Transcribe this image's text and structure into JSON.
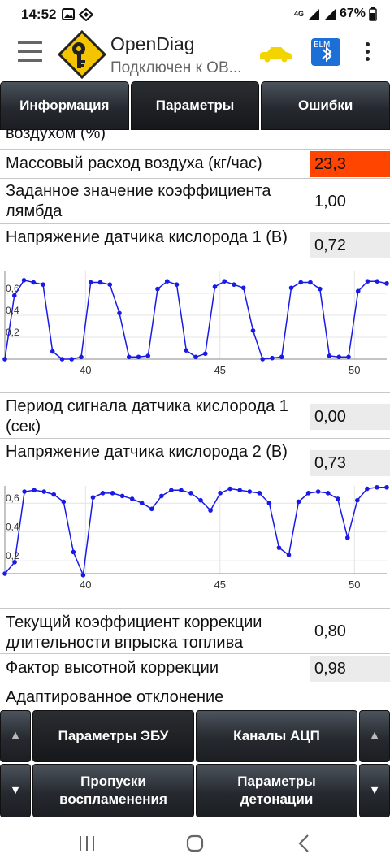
{
  "status_bar": {
    "time": "14:52",
    "network": "4G",
    "battery": "67%"
  },
  "app_bar": {
    "title": "OpenDiag",
    "subtitle": "Подключен к ОВ..."
  },
  "tabs": [
    {
      "label": "Информация",
      "active": false
    },
    {
      "label": "Параметры",
      "active": true
    },
    {
      "label": "Ошибки",
      "active": false
    }
  ],
  "params": [
    {
      "label": "воздухом (%)",
      "value": ""
    },
    {
      "label": "Массовый расход воздуха (кг/час)",
      "value": "23,3"
    },
    {
      "label": "Заданное значение коэффициента лямбда",
      "value": "1,00"
    },
    {
      "label": "Напряжение датчика кислорода 1 (В)",
      "value": "0,72"
    },
    {
      "label": "Период сигнала датчика кислорода 1 (сек)",
      "value": "0,00"
    },
    {
      "label": "Напряжение датчика кислорода 2 (В)",
      "value": "0,73"
    },
    {
      "label": "Текущий коэффициент коррекции длительности впрыска топлива",
      "value": "0,80"
    },
    {
      "label": "Фактор высотной коррекции",
      "value": "0,98"
    },
    {
      "label": "Адаптированное отклонение",
      "value": ""
    }
  ],
  "chart_data": [
    {
      "type": "line",
      "title": "",
      "xlim": [
        37.0,
        51.2
      ],
      "ylim": [
        0.0,
        0.8
      ],
      "x_ticks": [
        "40",
        "45",
        "50"
      ],
      "y_ticks": [
        "0,2",
        "0,4",
        "0,6"
      ],
      "grid": true,
      "color": "#1a1ae6",
      "series": [
        {
          "values": [
            0.0,
            0.58,
            0.72,
            0.7,
            0.68,
            0.07,
            0.0,
            0.0,
            0.02,
            0.7,
            0.7,
            0.68,
            0.42,
            0.02,
            0.02,
            0.03,
            0.64,
            0.71,
            0.68,
            0.08,
            0.02,
            0.05,
            0.66,
            0.71,
            0.68,
            0.65,
            0.26,
            0.0,
            0.01,
            0.02,
            0.65,
            0.7,
            0.7,
            0.64,
            0.03,
            0.02,
            0.02,
            0.62,
            0.71,
            0.71,
            0.69
          ]
        }
      ]
    },
    {
      "type": "line",
      "title": "",
      "xlim": [
        37.0,
        51.2
      ],
      "ylim": [
        0.11,
        0.72
      ],
      "x_ticks": [
        "40",
        "45",
        "50"
      ],
      "y_ticks": [
        "0,2",
        "0,4",
        "0,6"
      ],
      "grid": true,
      "color": "#1a1ae6",
      "series": [
        {
          "values": [
            0.11,
            0.19,
            0.68,
            0.69,
            0.68,
            0.66,
            0.61,
            0.26,
            0.1,
            0.64,
            0.67,
            0.67,
            0.65,
            0.63,
            0.6,
            0.56,
            0.65,
            0.69,
            0.69,
            0.67,
            0.62,
            0.55,
            0.67,
            0.7,
            0.69,
            0.68,
            0.67,
            0.6,
            0.29,
            0.24,
            0.61,
            0.67,
            0.68,
            0.67,
            0.63,
            0.36,
            0.62,
            0.7,
            0.71,
            0.71
          ]
        }
      ]
    }
  ],
  "bottom_nav": {
    "up_arrow": "▲",
    "down_arrow": "▼",
    "buttons": [
      {
        "label": "Параметры ЭБУ",
        "active": true
      },
      {
        "label": "Каналы АЦП",
        "active": false
      },
      {
        "label": "Пропуски воспламенения",
        "active": false
      },
      {
        "label": "Параметры детонации",
        "active": false
      }
    ]
  }
}
